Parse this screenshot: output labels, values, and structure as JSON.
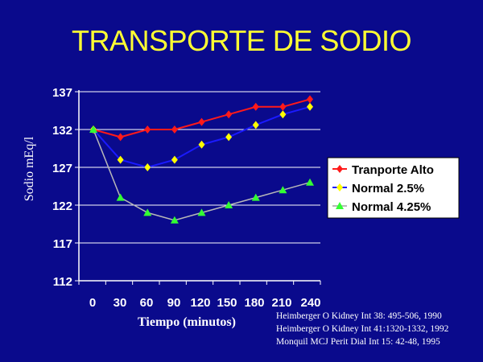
{
  "slide": {
    "title": "TRANSPORTE DE SODIO"
  },
  "references": [
    "Heimberger O Kidney Int 38: 495-506, 1990",
    "Heimberger O Kidney Int 41:1320-1332, 1992",
    "Monquil MCJ Perit Dial Int 15: 42-48, 1995"
  ],
  "chart_data": {
    "type": "line",
    "title": "",
    "xlabel": "Tiempo (minutos)",
    "ylabel": "Sodio mEq/l",
    "categories": [
      "0",
      "30",
      "60",
      "90",
      "120",
      "150",
      "180",
      "210",
      "240"
    ],
    "yticks": [
      "112",
      "117",
      "122",
      "127",
      "132",
      "137"
    ],
    "ylim": [
      112,
      137
    ],
    "grid": "horizontal",
    "legend": "right",
    "series": [
      {
        "name": "Tranporte Alto",
        "color": "#ff1a1a",
        "marker": "diamond",
        "x": [
          0,
          30,
          60,
          90,
          120,
          150,
          180,
          210,
          240
        ],
        "values": [
          132,
          131,
          132,
          132,
          133,
          134,
          135,
          135,
          136
        ]
      },
      {
        "name": "Normal 2.5%",
        "color": "#ffff00",
        "linecolor": "#1a1aff",
        "marker": "diamond",
        "x": [
          0,
          30,
          60,
          90,
          120,
          150,
          180,
          210,
          240
        ],
        "values": [
          132,
          128,
          127,
          128,
          130,
          131,
          132.6,
          134,
          135
        ]
      },
      {
        "name": "Normal 4.25%",
        "color": "#33ff33",
        "linecolor": "#b8b8b8",
        "marker": "triangle",
        "x": [
          0,
          30,
          60,
          90,
          120,
          150,
          180,
          210,
          240
        ],
        "values": [
          132,
          123,
          121,
          120,
          121,
          122,
          123,
          124,
          125
        ]
      }
    ]
  }
}
